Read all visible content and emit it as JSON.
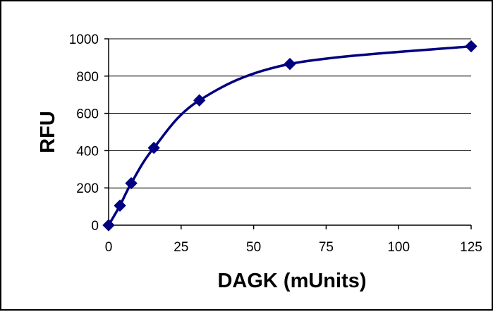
{
  "chart_data": {
    "type": "scatter",
    "title": "",
    "xlabel": "DAGK (mUnits)",
    "ylabel": "RFU",
    "xlim": [
      0,
      125
    ],
    "ylim": [
      0,
      1000
    ],
    "xticks": [
      0,
      25,
      50,
      75,
      100,
      125
    ],
    "yticks": [
      0,
      200,
      400,
      600,
      800,
      1000
    ],
    "grid": "horizontal",
    "legend": "none",
    "series": [
      {
        "x": [
          0,
          3.9,
          7.8,
          15.6,
          31.3,
          62.5,
          125
        ],
        "y": [
          0,
          105,
          225,
          415,
          670,
          865,
          960
        ],
        "marker": "diamond",
        "line": "smoothed",
        "color": "#000080"
      }
    ]
  }
}
